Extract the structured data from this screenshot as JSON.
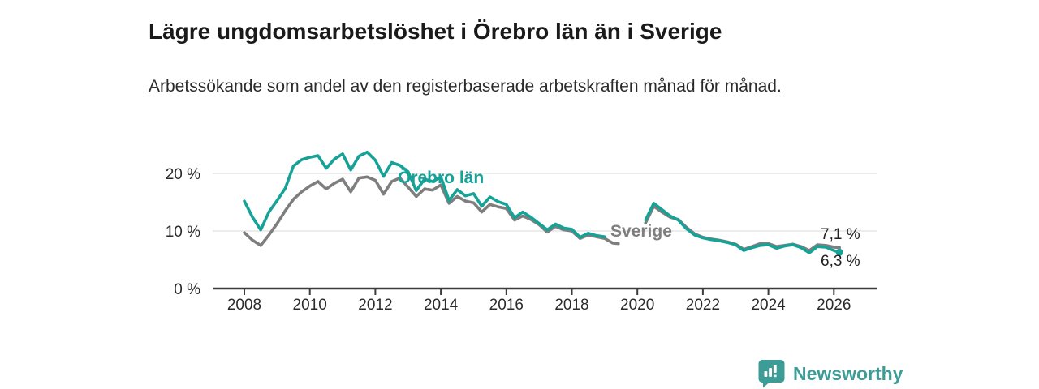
{
  "header": {
    "title": "Lägre ungdomsarbetslöshet i Örebro län än i Sverige",
    "subtitle": "Arbetssökande som andel av den registerbaserade arbetskraften månad för månad."
  },
  "footer": {
    "brand": "Newsworthy",
    "logo_icon": "bar-chart-pin"
  },
  "colors": {
    "orebro_line": "#16A296",
    "sverige_line": "#7E7E7E",
    "axis": "#3C3C3C",
    "gridline": "#DADADA",
    "text": "#2B2B2B",
    "value_label": "#222222",
    "brand_teal": "#3D9D96"
  },
  "chart_data": {
    "type": "line",
    "title": "Lägre ungdomsarbetslöshet i Örebro län än i Sverige",
    "subtitle": "Arbetssökande som andel av den registerbaserade arbetskraften månad för månad.",
    "unit": "%",
    "grid": "horizontal",
    "legend_position": "inline-labels",
    "x_axis": {
      "ticks": [
        2008,
        2010,
        2012,
        2014,
        2016,
        2018,
        2020,
        2022,
        2024,
        2026
      ],
      "tick_labels": [
        "2008",
        "2010",
        "2012",
        "2014",
        "2016",
        "2018",
        "2020",
        "2022",
        "2024",
        "2026"
      ],
      "range": [
        2007.0,
        2027.3
      ]
    },
    "y_axis": {
      "ticks": [
        0,
        10,
        20
      ],
      "tick_labels": [
        "0 %",
        "10 %",
        "20 %"
      ],
      "range": [
        0,
        26
      ]
    },
    "data_gap_note": "both series have a gap between 2019 and 2020",
    "series": [
      {
        "name": "Örebro län",
        "color": "#16A296",
        "end_label": "6,3 %",
        "end_value": 6.3,
        "end_dot": true,
        "segments": [
          [
            [
              2008.0,
              15.2
            ],
            [
              2008.25,
              12.4
            ],
            [
              2008.5,
              10.2
            ],
            [
              2008.75,
              13.3
            ],
            [
              2009.0,
              15.3
            ],
            [
              2009.25,
              17.4
            ],
            [
              2009.5,
              21.3
            ],
            [
              2009.75,
              22.4
            ],
            [
              2010.0,
              22.8
            ],
            [
              2010.25,
              23.1
            ],
            [
              2010.5,
              20.9
            ],
            [
              2010.75,
              22.5
            ],
            [
              2011.0,
              23.4
            ],
            [
              2011.25,
              20.6
            ],
            [
              2011.5,
              23.0
            ],
            [
              2011.75,
              23.7
            ],
            [
              2012.0,
              22.3
            ],
            [
              2012.25,
              19.5
            ],
            [
              2012.5,
              21.9
            ],
            [
              2012.75,
              21.4
            ],
            [
              2013.0,
              20.3
            ],
            [
              2013.25,
              17.0
            ],
            [
              2013.5,
              19.0
            ],
            [
              2013.75,
              18.6
            ],
            [
              2014.0,
              19.4
            ],
            [
              2014.25,
              15.3
            ],
            [
              2014.5,
              17.2
            ],
            [
              2014.75,
              16.1
            ],
            [
              2015.0,
              16.5
            ],
            [
              2015.25,
              14.3
            ],
            [
              2015.5,
              15.9
            ],
            [
              2015.75,
              15.1
            ],
            [
              2016.0,
              14.6
            ],
            [
              2016.25,
              12.3
            ],
            [
              2016.5,
              13.3
            ],
            [
              2016.75,
              12.4
            ],
            [
              2017.0,
              11.3
            ],
            [
              2017.25,
              10.2
            ],
            [
              2017.5,
              11.2
            ],
            [
              2017.75,
              10.5
            ],
            [
              2018.0,
              10.3
            ],
            [
              2018.25,
              8.9
            ],
            [
              2018.5,
              9.6
            ],
            [
              2018.75,
              9.2
            ],
            [
              2019.0,
              9.0
            ]
          ],
          [
            [
              2020.25,
              11.9
            ],
            [
              2020.5,
              14.8
            ],
            [
              2020.75,
              13.7
            ],
            [
              2021.0,
              12.6
            ],
            [
              2021.25,
              11.9
            ],
            [
              2021.5,
              10.4
            ],
            [
              2021.75,
              9.3
            ],
            [
              2022.0,
              8.8
            ],
            [
              2022.25,
              8.5
            ],
            [
              2022.5,
              8.3
            ],
            [
              2022.75,
              8.0
            ],
            [
              2023.0,
              7.6
            ],
            [
              2023.25,
              6.6
            ],
            [
              2023.5,
              7.1
            ],
            [
              2023.75,
              7.5
            ],
            [
              2024.0,
              7.6
            ],
            [
              2024.25,
              7.0
            ],
            [
              2024.5,
              7.4
            ],
            [
              2024.75,
              7.6
            ],
            [
              2025.0,
              7.1
            ],
            [
              2025.25,
              6.2
            ],
            [
              2025.5,
              7.3
            ],
            [
              2025.75,
              7.2
            ],
            [
              2026.0,
              6.6
            ],
            [
              2026.17,
              6.3
            ]
          ]
        ]
      },
      {
        "name": "Sverige",
        "color": "#7E7E7E",
        "end_label": "7,1 %",
        "end_value": 7.1,
        "end_dot": false,
        "segments": [
          [
            [
              2008.0,
              9.7
            ],
            [
              2008.25,
              8.4
            ],
            [
              2008.5,
              7.5
            ],
            [
              2008.75,
              9.3
            ],
            [
              2009.0,
              11.3
            ],
            [
              2009.25,
              13.5
            ],
            [
              2009.5,
              15.5
            ],
            [
              2009.75,
              16.8
            ],
            [
              2010.0,
              17.8
            ],
            [
              2010.25,
              18.6
            ],
            [
              2010.5,
              17.3
            ],
            [
              2010.75,
              18.3
            ],
            [
              2011.0,
              19.0
            ],
            [
              2011.25,
              16.8
            ],
            [
              2011.5,
              19.2
            ],
            [
              2011.75,
              19.4
            ],
            [
              2012.0,
              18.8
            ],
            [
              2012.25,
              16.4
            ],
            [
              2012.5,
              18.6
            ],
            [
              2012.75,
              19.2
            ],
            [
              2013.0,
              17.6
            ],
            [
              2013.25,
              16.0
            ],
            [
              2013.5,
              17.3
            ],
            [
              2013.75,
              17.1
            ],
            [
              2014.0,
              18.0
            ],
            [
              2014.25,
              14.8
            ],
            [
              2014.5,
              16.0
            ],
            [
              2014.75,
              15.2
            ],
            [
              2015.0,
              14.9
            ],
            [
              2015.25,
              13.3
            ],
            [
              2015.5,
              14.6
            ],
            [
              2015.75,
              14.2
            ],
            [
              2016.0,
              13.9
            ],
            [
              2016.25,
              11.9
            ],
            [
              2016.5,
              12.6
            ],
            [
              2016.75,
              12.0
            ],
            [
              2017.0,
              11.1
            ],
            [
              2017.25,
              9.8
            ],
            [
              2017.5,
              10.8
            ],
            [
              2017.75,
              10.2
            ],
            [
              2018.0,
              10.0
            ],
            [
              2018.25,
              8.7
            ],
            [
              2018.5,
              9.3
            ],
            [
              2018.75,
              9.0
            ],
            [
              2019.0,
              8.7
            ],
            [
              2019.25,
              7.9
            ],
            [
              2019.42,
              7.8
            ]
          ],
          [
            [
              2020.25,
              11.4
            ],
            [
              2020.5,
              14.3
            ],
            [
              2020.75,
              13.3
            ],
            [
              2021.0,
              12.4
            ],
            [
              2021.25,
              12.0
            ],
            [
              2021.5,
              10.6
            ],
            [
              2021.75,
              9.5
            ],
            [
              2022.0,
              8.9
            ],
            [
              2022.25,
              8.6
            ],
            [
              2022.5,
              8.4
            ],
            [
              2022.75,
              8.1
            ],
            [
              2023.0,
              7.7
            ],
            [
              2023.25,
              6.8
            ],
            [
              2023.5,
              7.3
            ],
            [
              2023.75,
              7.8
            ],
            [
              2024.0,
              7.8
            ],
            [
              2024.25,
              7.3
            ],
            [
              2024.5,
              7.5
            ],
            [
              2024.75,
              7.7
            ],
            [
              2025.0,
              7.3
            ],
            [
              2025.25,
              6.6
            ],
            [
              2025.5,
              7.6
            ],
            [
              2025.75,
              7.5
            ],
            [
              2026.0,
              7.2
            ],
            [
              2026.17,
              7.1
            ]
          ]
        ]
      }
    ]
  }
}
